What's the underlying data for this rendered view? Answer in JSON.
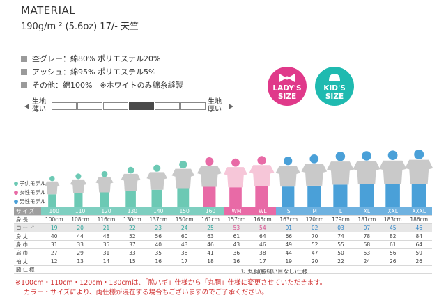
{
  "header": {
    "title": "MATERIAL",
    "spec": "190g/m ² (5.6oz) 17/- 天竺"
  },
  "materials": [
    "杢グレー：綿80% ポリエステル20%",
    "アッシュ：綿95% ポリエステル5%",
    "その他：綿100%　※ホワイトのみ綿糸縫製"
  ],
  "thickness": {
    "thin_label": "生地薄い",
    "thick_label": "生地厚い",
    "steps": 6,
    "selected_index": 3
  },
  "badges": {
    "lady": "LADY'S SIZE",
    "kids": "KID'S SIZE"
  },
  "colors": {
    "kids": "#6cc9b4",
    "lady": "#e86aa6",
    "mens": "#4aa0d8",
    "shirt": "#c9c9c9",
    "wm_shirt": "#f6c6d8",
    "header_row": "#9e9e9e",
    "note_red": "#d03030"
  },
  "legend": [
    "子供モデル",
    "女性モデル",
    "男性モデル"
  ],
  "table": {
    "rows": [
      {
        "label": "サイズ",
        "cells": [
          "100",
          "110",
          "120",
          "130",
          "140",
          "150",
          "160",
          "WM",
          "WL",
          "S",
          "M",
          "L",
          "XL",
          "XXL",
          "XXXL"
        ]
      },
      {
        "label": "身長",
        "cells": [
          "100cm",
          "108cm",
          "116cm",
          "130cm",
          "137cm",
          "150cm",
          "161cm",
          "157cm",
          "165cm",
          "163cm",
          "170cm",
          "179cm",
          "181cm",
          "183cm",
          "186cm"
        ]
      },
      {
        "label": "コード",
        "cells": [
          "19",
          "20",
          "21",
          "22",
          "23",
          "24",
          "25",
          "53",
          "54",
          "01",
          "02",
          "03",
          "07",
          "45",
          "46"
        ]
      },
      {
        "label": "身丈",
        "cells": [
          "40",
          "44",
          "48",
          "52",
          "56",
          "60",
          "63",
          "61",
          "64",
          "66",
          "70",
          "74",
          "78",
          "82",
          "84"
        ]
      },
      {
        "label": "身巾",
        "cells": [
          "31",
          "33",
          "35",
          "37",
          "40",
          "43",
          "46",
          "43",
          "46",
          "49",
          "52",
          "55",
          "58",
          "61",
          "64"
        ]
      },
      {
        "label": "肩巾",
        "cells": [
          "27",
          "29",
          "31",
          "33",
          "35",
          "38",
          "41",
          "36",
          "38",
          "44",
          "47",
          "50",
          "53",
          "56",
          "59"
        ]
      },
      {
        "label": "袖丈",
        "cells": [
          "12",
          "13",
          "14",
          "15",
          "16",
          "17",
          "18",
          "16",
          "17",
          "19",
          "20",
          "22",
          "24",
          "26",
          "26"
        ]
      },
      {
        "label": "脇仕様",
        "cells": [
          "",
          "",
          "",
          "",
          "",
          "",
          "",
          "",
          "",
          "",
          "",
          "",
          "",
          "",
          ""
        ]
      }
    ]
  },
  "notes": {
    "maru": "丸胴(脇縫い目なし)仕様",
    "line1": "※100cm・110cm・120cm・130cmは、「脇ハギ」仕様から「丸胴」仕様に変更させていただきます。",
    "line2": "カラー・サイズにより、両仕様が混在する場合もございますのでご了承ください。"
  }
}
